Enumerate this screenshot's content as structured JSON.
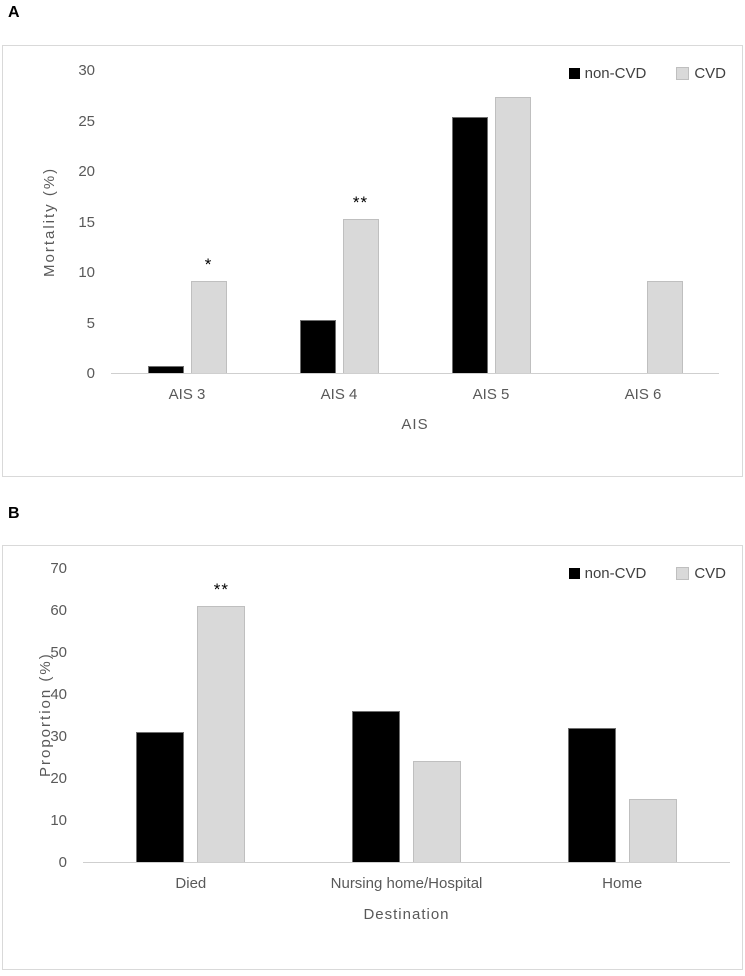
{
  "figure": {
    "panel_a_label": "A",
    "panel_b_label": "B"
  },
  "colors": {
    "non_cvd_bar": "#000000",
    "cvd_bar_fill": "#d9d9d9",
    "cvd_bar_border": "#bfbfbf",
    "axis_text": "#595959",
    "legend_text": "#404040",
    "frame_border": "#d9d9d9",
    "axis_line": "#cfcfcf"
  },
  "chart_data": [
    {
      "type": "bar",
      "panel": "A",
      "title": "",
      "categories": [
        "AIS 3",
        "AIS 4",
        "AIS 5",
        "AIS 6"
      ],
      "series": [
        {
          "name": "non-CVD",
          "color": "#000000",
          "values": [
            0.7,
            5.2,
            25.3,
            0
          ]
        },
        {
          "name": "CVD",
          "color": "#d9d9d9",
          "values": [
            9.1,
            15.2,
            27.3,
            9.1
          ]
        }
      ],
      "annotations": [
        {
          "category": "AIS 3",
          "series": "CVD",
          "text": "*"
        },
        {
          "category": "AIS 4",
          "series": "CVD",
          "text": "**"
        }
      ],
      "xlabel": "AIS",
      "ylabel": "Mortality (%)",
      "ylim": [
        0,
        30
      ],
      "ytick_step": 5,
      "grid": false,
      "legend_position": "top-right",
      "legend": [
        "non-CVD",
        "CVD"
      ]
    },
    {
      "type": "bar",
      "panel": "B",
      "title": "",
      "categories": [
        "Died",
        "Nursing home/Hospital",
        "Home"
      ],
      "series": [
        {
          "name": "non-CVD",
          "color": "#000000",
          "values": [
            31,
            36,
            32
          ]
        },
        {
          "name": "CVD",
          "color": "#d9d9d9",
          "values": [
            61,
            24,
            15
          ]
        }
      ],
      "annotations": [
        {
          "category": "Died",
          "series": "CVD",
          "text": "**"
        }
      ],
      "xlabel": "Destination",
      "ylabel": "Proportion (%)",
      "ylim": [
        0,
        70
      ],
      "ytick_step": 10,
      "grid": false,
      "legend_position": "top-right",
      "legend": [
        "non-CVD",
        "CVD"
      ]
    }
  ]
}
